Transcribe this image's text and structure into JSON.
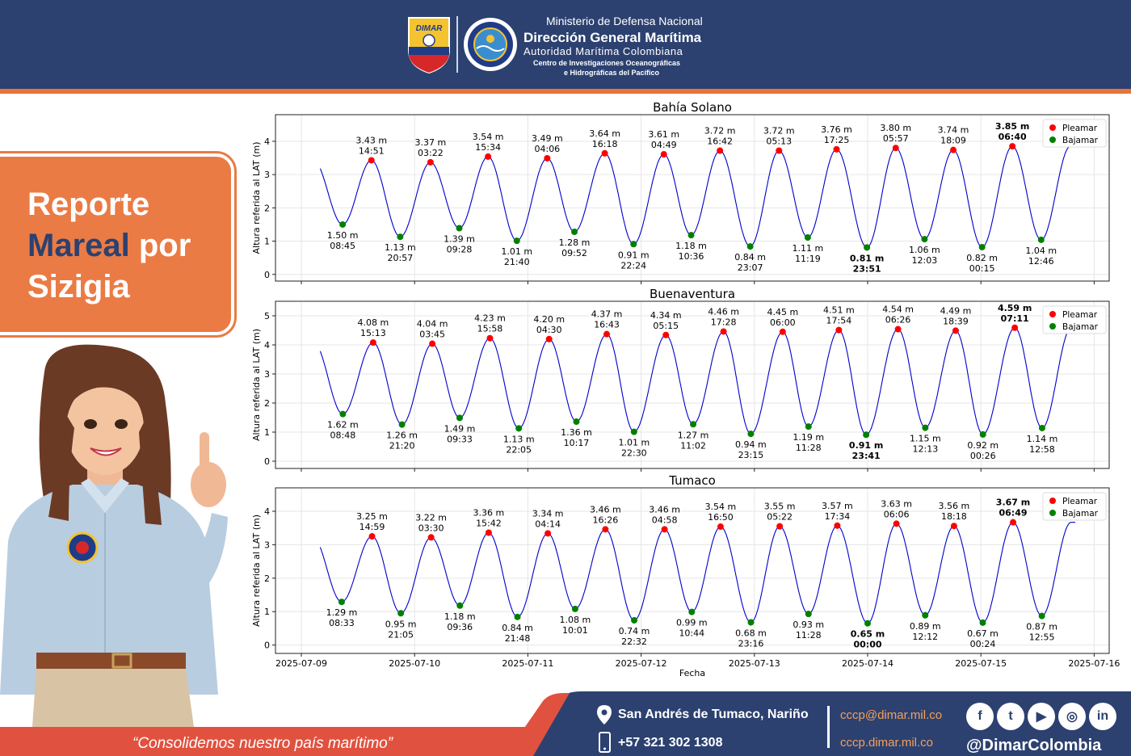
{
  "header": {
    "ministry": "Ministerio de Defensa Nacional",
    "agency": "Dirección General Marítima",
    "authority": "Autoridad Marítima Colombiana",
    "center_line1": "Centro de Investigaciones Oceanográficas",
    "center_line2": "e Hidrográficas del Pacífico",
    "logo_text": "DIMAR"
  },
  "report": {
    "line1": "Reporte",
    "line2_accent": "Mareal",
    "line2_rest": " por",
    "line3": "Sizigia"
  },
  "colors": {
    "brand_blue": "#2c4170",
    "brand_orange": "#ea7b45",
    "footer_red": "#e0523f",
    "pleamar": "#ff0000",
    "bajamar": "#008000",
    "curve": "#0000cc"
  },
  "footer": {
    "slogan": "“Consolidemos nuestro país marítimo”",
    "location": "San Andrés de Tumaco, Nariño",
    "phone": "+57 321 302 1308",
    "email": "cccp@dimar.mil.co",
    "website": "cccp.dimar.mil.co",
    "handle": "@DimarColombia",
    "social_icons": [
      "facebook-icon",
      "twitter-icon",
      "youtube-icon",
      "instagram-icon",
      "linkedin-icon"
    ]
  },
  "chart_data": [
    {
      "type": "line",
      "title": "Bahía Solano",
      "ylabel": "Altura referida al LAT (m)",
      "ylim": [
        -0.2,
        4.8
      ],
      "yticks": [
        0,
        1,
        2,
        3,
        4
      ],
      "legend": [
        "Pleamar",
        "Bajamar"
      ],
      "legend_position": "top-right",
      "grid": true,
      "start": "2025-07-09T04:00",
      "end": "2025-07-15T20:00",
      "events": [
        {
          "type": "bajamar",
          "time": "2025-07-09T08:45",
          "label": "08:45",
          "value": 1.5
        },
        {
          "type": "pleamar",
          "time": "2025-07-09T14:51",
          "label": "14:51",
          "value": 3.43
        },
        {
          "type": "bajamar",
          "time": "2025-07-09T20:57",
          "label": "20:57",
          "value": 1.13
        },
        {
          "type": "pleamar",
          "time": "2025-07-10T03:22",
          "label": "03:22",
          "value": 3.37
        },
        {
          "type": "bajamar",
          "time": "2025-07-10T09:28",
          "label": "09:28",
          "value": 1.39
        },
        {
          "type": "pleamar",
          "time": "2025-07-10T15:34",
          "label": "15:34",
          "value": 3.54
        },
        {
          "type": "bajamar",
          "time": "2025-07-10T21:40",
          "label": "21:40",
          "value": 1.01
        },
        {
          "type": "pleamar",
          "time": "2025-07-11T04:06",
          "label": "04:06",
          "value": 3.49
        },
        {
          "type": "bajamar",
          "time": "2025-07-11T09:52",
          "label": "09:52",
          "value": 1.28
        },
        {
          "type": "pleamar",
          "time": "2025-07-11T16:18",
          "label": "16:18",
          "value": 3.64
        },
        {
          "type": "bajamar",
          "time": "2025-07-11T22:24",
          "label": "22:24",
          "value": 0.91
        },
        {
          "type": "pleamar",
          "time": "2025-07-12T04:49",
          "label": "04:49",
          "value": 3.61
        },
        {
          "type": "bajamar",
          "time": "2025-07-12T10:36",
          "label": "10:36",
          "value": 1.18
        },
        {
          "type": "pleamar",
          "time": "2025-07-12T16:42",
          "label": "16:42",
          "value": 3.72
        },
        {
          "type": "bajamar",
          "time": "2025-07-12T23:07",
          "label": "23:07",
          "value": 0.84
        },
        {
          "type": "pleamar",
          "time": "2025-07-13T05:13",
          "label": "05:13",
          "value": 3.72
        },
        {
          "type": "bajamar",
          "time": "2025-07-13T11:19",
          "label": "11:19",
          "value": 1.11
        },
        {
          "type": "pleamar",
          "time": "2025-07-13T17:25",
          "label": "17:25",
          "value": 3.76
        },
        {
          "type": "bajamar",
          "time": "2025-07-13T23:51",
          "label": "23:51",
          "value": 0.81,
          "bold": true
        },
        {
          "type": "pleamar",
          "time": "2025-07-14T05:57",
          "label": "05:57",
          "value": 3.8
        },
        {
          "type": "bajamar",
          "time": "2025-07-14T12:03",
          "label": "12:03",
          "value": 1.06
        },
        {
          "type": "pleamar",
          "time": "2025-07-14T18:09",
          "label": "18:09",
          "value": 3.74
        },
        {
          "type": "bajamar",
          "time": "2025-07-15T00:15",
          "label": "00:15",
          "value": 0.82
        },
        {
          "type": "pleamar",
          "time": "2025-07-15T06:40",
          "label": "06:40",
          "value": 3.85,
          "bold": true
        },
        {
          "type": "bajamar",
          "time": "2025-07-15T12:46",
          "label": "12:46",
          "value": 1.04
        }
      ]
    },
    {
      "type": "line",
      "title": "Buenaventura",
      "ylabel": "Altura referida al LAT (m)",
      "ylim": [
        -0.25,
        5.5
      ],
      "yticks": [
        0,
        1,
        2,
        3,
        4,
        5
      ],
      "legend": [
        "Pleamar",
        "Bajamar"
      ],
      "legend_position": "top-right",
      "grid": true,
      "start": "2025-07-09T04:00",
      "end": "2025-07-15T20:00",
      "events": [
        {
          "type": "bajamar",
          "time": "2025-07-09T08:48",
          "label": "08:48",
          "value": 1.62
        },
        {
          "type": "pleamar",
          "time": "2025-07-09T15:13",
          "label": "15:13",
          "value": 4.08
        },
        {
          "type": "bajamar",
          "time": "2025-07-09T21:20",
          "label": "21:20",
          "value": 1.26
        },
        {
          "type": "pleamar",
          "time": "2025-07-10T03:45",
          "label": "03:45",
          "value": 4.04
        },
        {
          "type": "bajamar",
          "time": "2025-07-10T09:33",
          "label": "09:33",
          "value": 1.49
        },
        {
          "type": "pleamar",
          "time": "2025-07-10T15:58",
          "label": "15:58",
          "value": 4.23
        },
        {
          "type": "bajamar",
          "time": "2025-07-10T22:05",
          "label": "22:05",
          "value": 1.13
        },
        {
          "type": "pleamar",
          "time": "2025-07-11T04:30",
          "label": "04:30",
          "value": 4.2
        },
        {
          "type": "bajamar",
          "time": "2025-07-11T10:17",
          "label": "10:17",
          "value": 1.36
        },
        {
          "type": "pleamar",
          "time": "2025-07-11T16:43",
          "label": "16:43",
          "value": 4.37
        },
        {
          "type": "bajamar",
          "time": "2025-07-11T22:30",
          "label": "22:30",
          "value": 1.01
        },
        {
          "type": "pleamar",
          "time": "2025-07-12T05:15",
          "label": "05:15",
          "value": 4.34
        },
        {
          "type": "bajamar",
          "time": "2025-07-12T11:02",
          "label": "11:02",
          "value": 1.27
        },
        {
          "type": "pleamar",
          "time": "2025-07-12T17:28",
          "label": "17:28",
          "value": 4.46
        },
        {
          "type": "bajamar",
          "time": "2025-07-12T23:15",
          "label": "23:15",
          "value": 0.94
        },
        {
          "type": "pleamar",
          "time": "2025-07-13T06:00",
          "label": "06:00",
          "value": 4.45
        },
        {
          "type": "bajamar",
          "time": "2025-07-13T11:28",
          "label": "11:28",
          "value": 1.19
        },
        {
          "type": "pleamar",
          "time": "2025-07-13T17:54",
          "label": "17:54",
          "value": 4.51
        },
        {
          "type": "bajamar",
          "time": "2025-07-13T23:41",
          "label": "23:41",
          "value": 0.91,
          "bold": true
        },
        {
          "type": "pleamar",
          "time": "2025-07-14T06:26",
          "label": "06:26",
          "value": 4.54
        },
        {
          "type": "bajamar",
          "time": "2025-07-14T12:13",
          "label": "12:13",
          "value": 1.15
        },
        {
          "type": "pleamar",
          "time": "2025-07-14T18:39",
          "label": "18:39",
          "value": 4.49
        },
        {
          "type": "bajamar",
          "time": "2025-07-15T00:26",
          "label": "00:26",
          "value": 0.92
        },
        {
          "type": "pleamar",
          "time": "2025-07-15T07:11",
          "label": "07:11",
          "value": 4.59,
          "bold": true
        },
        {
          "type": "bajamar",
          "time": "2025-07-15T12:58",
          "label": "12:58",
          "value": 1.14
        }
      ]
    },
    {
      "type": "line",
      "title": "Tumaco",
      "ylabel": "Altura referida al LAT (m)",
      "xlabel": "Fecha",
      "ylim": [
        -0.25,
        4.7
      ],
      "yticks": [
        0,
        1,
        2,
        3,
        4
      ],
      "xticks": [
        "2025-07-09",
        "2025-07-10",
        "2025-07-11",
        "2025-07-12",
        "2025-07-13",
        "2025-07-14",
        "2025-07-15",
        "2025-07-16"
      ],
      "legend": [
        "Pleamar",
        "Bajamar"
      ],
      "legend_position": "top-right",
      "grid": true,
      "start": "2025-07-09T04:00",
      "end": "2025-07-15T20:00",
      "events": [
        {
          "type": "bajamar",
          "time": "2025-07-09T08:33",
          "label": "08:33",
          "value": 1.29
        },
        {
          "type": "pleamar",
          "time": "2025-07-09T14:59",
          "label": "14:59",
          "value": 3.25
        },
        {
          "type": "bajamar",
          "time": "2025-07-09T21:05",
          "label": "21:05",
          "value": 0.95
        },
        {
          "type": "pleamar",
          "time": "2025-07-10T03:30",
          "label": "03:30",
          "value": 3.22
        },
        {
          "type": "bajamar",
          "time": "2025-07-10T09:36",
          "label": "09:36",
          "value": 1.18
        },
        {
          "type": "pleamar",
          "time": "2025-07-10T15:42",
          "label": "15:42",
          "value": 3.36
        },
        {
          "type": "bajamar",
          "time": "2025-07-10T21:48",
          "label": "21:48",
          "value": 0.84
        },
        {
          "type": "pleamar",
          "time": "2025-07-11T04:14",
          "label": "04:14",
          "value": 3.34
        },
        {
          "type": "bajamar",
          "time": "2025-07-11T10:01",
          "label": "10:01",
          "value": 1.08
        },
        {
          "type": "pleamar",
          "time": "2025-07-11T16:26",
          "label": "16:26",
          "value": 3.46
        },
        {
          "type": "bajamar",
          "time": "2025-07-11T22:32",
          "label": "22:32",
          "value": 0.74
        },
        {
          "type": "pleamar",
          "time": "2025-07-12T04:58",
          "label": "04:58",
          "value": 3.46
        },
        {
          "type": "bajamar",
          "time": "2025-07-12T10:44",
          "label": "10:44",
          "value": 0.99
        },
        {
          "type": "pleamar",
          "time": "2025-07-12T16:50",
          "label": "16:50",
          "value": 3.54
        },
        {
          "type": "bajamar",
          "time": "2025-07-12T23:16",
          "label": "23:16",
          "value": 0.68
        },
        {
          "type": "pleamar",
          "time": "2025-07-13T05:22",
          "label": "05:22",
          "value": 3.55
        },
        {
          "type": "bajamar",
          "time": "2025-07-13T11:28",
          "label": "11:28",
          "value": 0.93
        },
        {
          "type": "pleamar",
          "time": "2025-07-13T17:34",
          "label": "17:34",
          "value": 3.57
        },
        {
          "type": "bajamar",
          "time": "2025-07-14T00:00",
          "label": "00:00",
          "value": 0.65,
          "bold": true
        },
        {
          "type": "pleamar",
          "time": "2025-07-14T06:06",
          "label": "06:06",
          "value": 3.63
        },
        {
          "type": "bajamar",
          "time": "2025-07-14T12:12",
          "label": "12:12",
          "value": 0.89
        },
        {
          "type": "pleamar",
          "time": "2025-07-14T18:18",
          "label": "18:18",
          "value": 3.56
        },
        {
          "type": "bajamar",
          "time": "2025-07-15T00:24",
          "label": "00:24",
          "value": 0.67
        },
        {
          "type": "pleamar",
          "time": "2025-07-15T06:49",
          "label": "06:49",
          "value": 3.67,
          "bold": true
        },
        {
          "type": "bajamar",
          "time": "2025-07-15T12:55",
          "label": "12:55",
          "value": 0.87
        }
      ]
    }
  ]
}
